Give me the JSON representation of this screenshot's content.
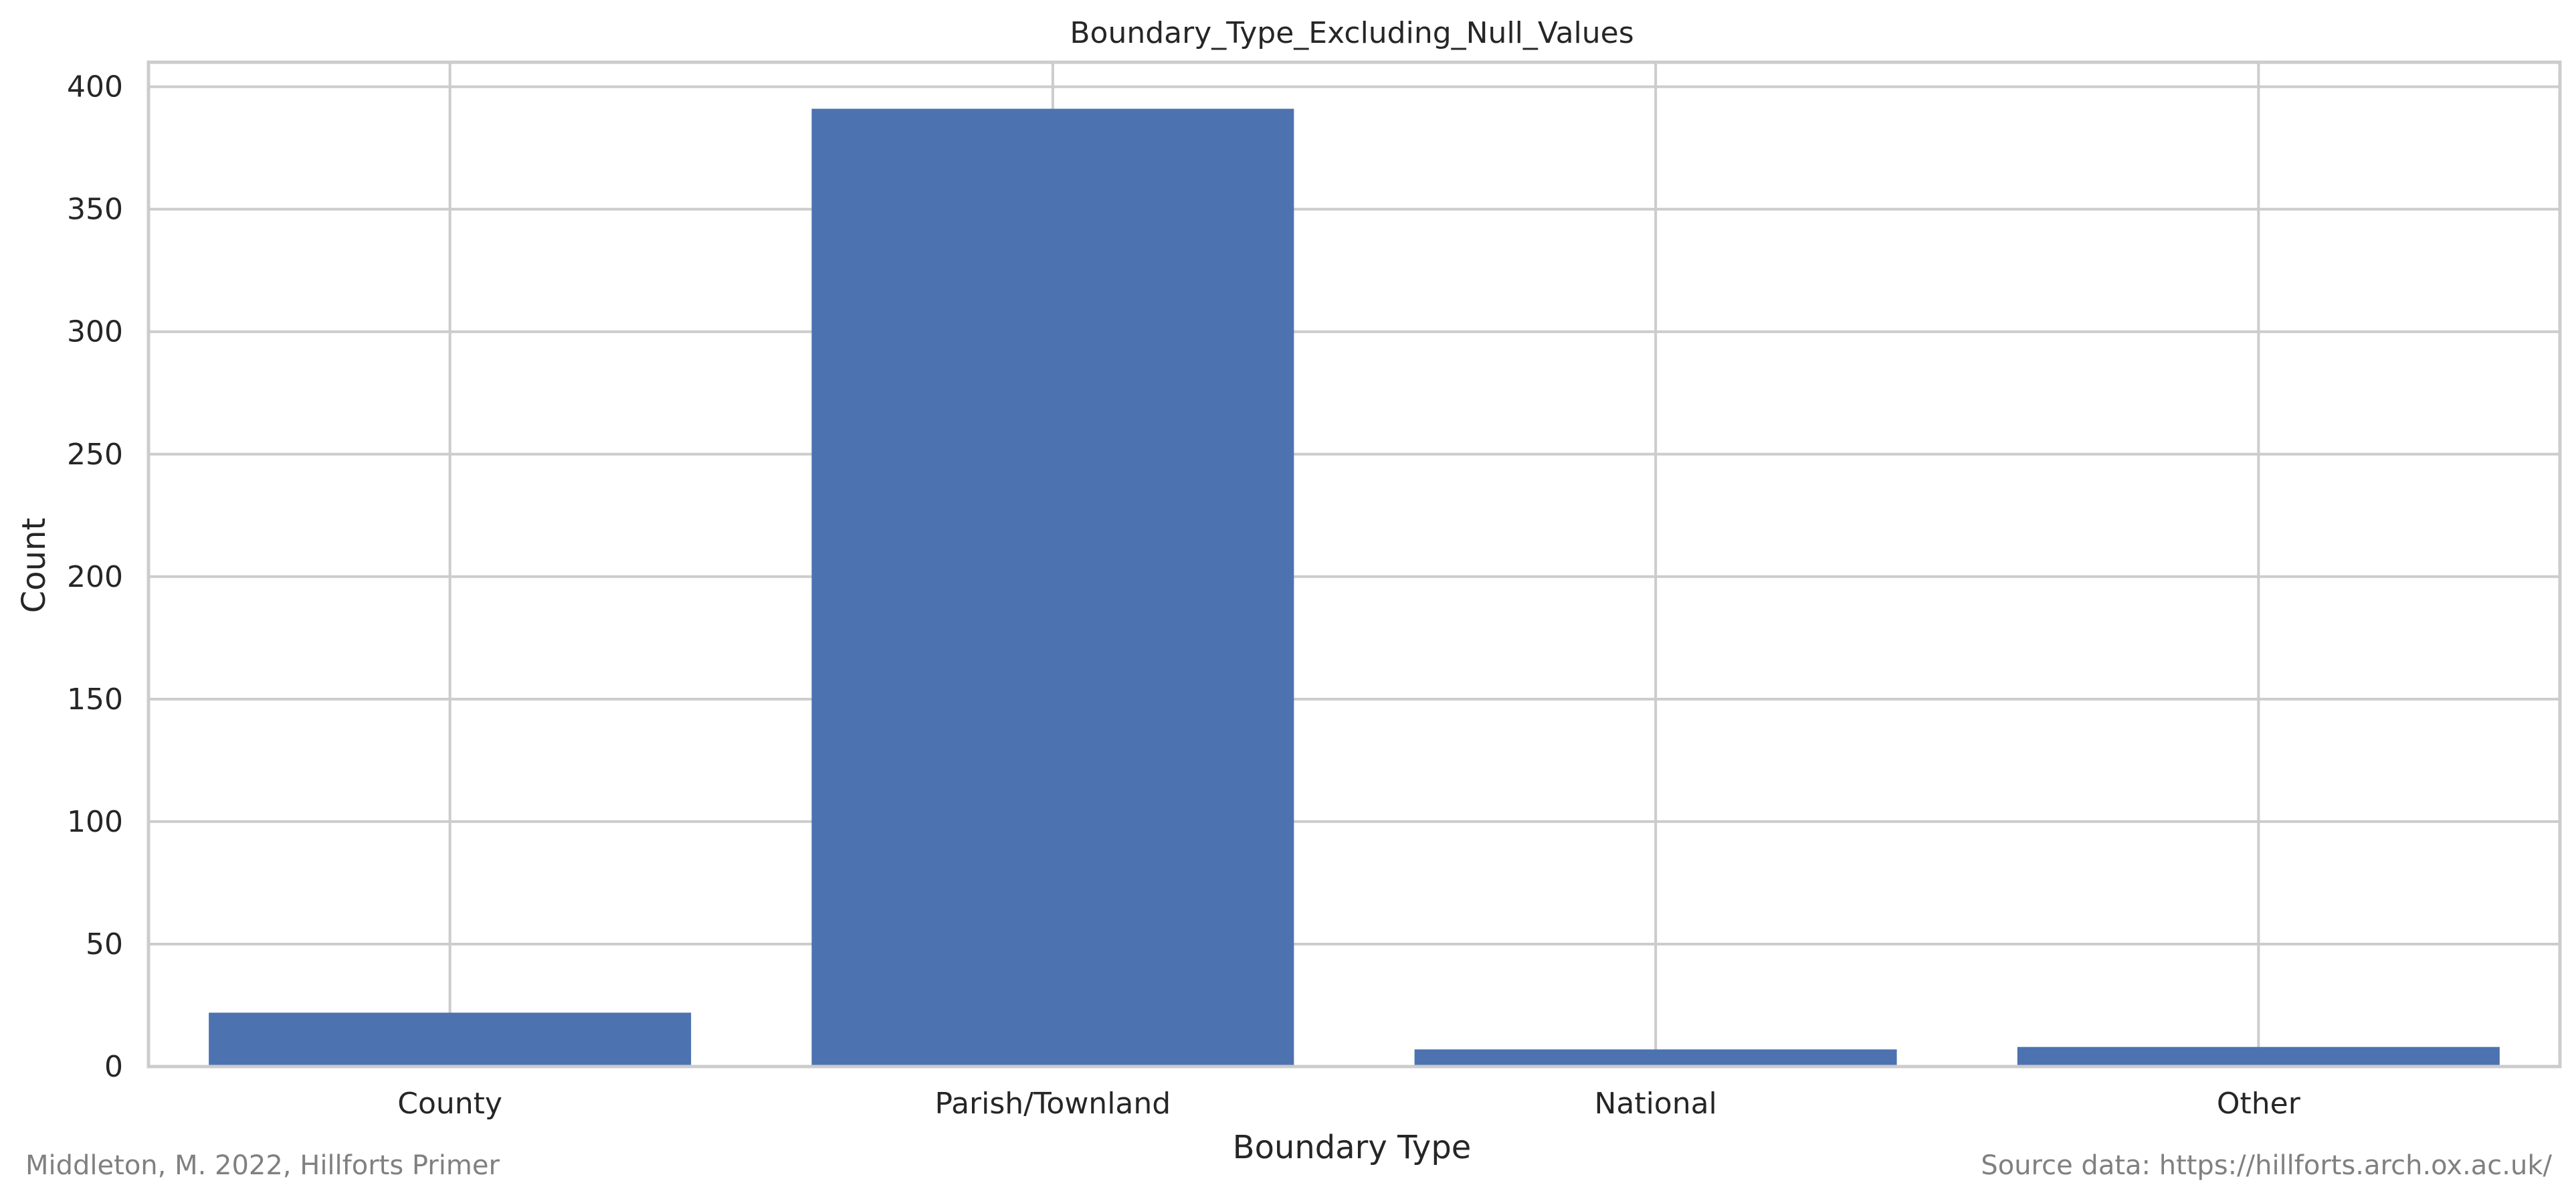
{
  "chart_data": {
    "type": "bar",
    "title": "Boundary_Type_Excluding_Null_Values",
    "xlabel": "Boundary Type",
    "ylabel": "Count",
    "categories": [
      "County",
      "Parish/Townland",
      "National",
      "Other"
    ],
    "values": [
      22,
      391,
      7,
      8
    ],
    "ylim": [
      0,
      410
    ],
    "yticks": [
      0,
      50,
      100,
      150,
      200,
      250,
      300,
      350,
      400
    ],
    "grid": true,
    "bar_color": "#4c72b0",
    "grid_color": "#cccccc",
    "spine_color": "#cccccc",
    "text_color": "#262626"
  },
  "footer": {
    "left_note": "Middleton, M. 2022, Hillforts Primer",
    "right_note": "Source data: https://hillforts.arch.ox.ac.uk/",
    "note_color": "#808080"
  }
}
